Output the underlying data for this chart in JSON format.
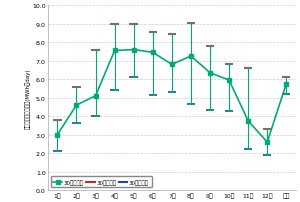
{
  "months": [
    "1月",
    "2月",
    "3月",
    "4月",
    "5月",
    "6月",
    "7月",
    "8月",
    "9月",
    "10月",
    "11月",
    "12月",
    "年間"
  ],
  "avg": [
    3.0,
    4.6,
    5.1,
    7.55,
    7.6,
    7.45,
    6.8,
    7.25,
    6.35,
    5.95,
    3.75,
    2.6,
    5.75
  ],
  "max": [
    3.8,
    5.6,
    7.6,
    9.0,
    9.0,
    8.55,
    8.45,
    9.05,
    7.8,
    6.8,
    6.6,
    3.3,
    6.1
  ],
  "min": [
    2.1,
    3.65,
    4.0,
    5.4,
    6.1,
    5.15,
    5.3,
    4.65,
    4.35,
    4.3,
    2.25,
    1.9,
    5.2
  ],
  "avg_color": "#00aa77",
  "max_color": "#cc2222",
  "min_color": "#2244aa",
  "bg_color": "#ffffff",
  "grid_color": "#cccccc",
  "ylabel": "日積算傾斜面発電量(MWh／day)",
  "ylim": [
    0.0,
    10.0
  ],
  "yticks": [
    0.0,
    1.0,
    2.0,
    3.0,
    4.0,
    5.0,
    6.0,
    7.0,
    8.0,
    9.0,
    10.0
  ],
  "legend_avg": "30年平均値",
  "legend_max": "30年最大値",
  "legend_min": "30年最小値",
  "figwidth": 3.0,
  "figheight": 2.03,
  "dpi": 100
}
